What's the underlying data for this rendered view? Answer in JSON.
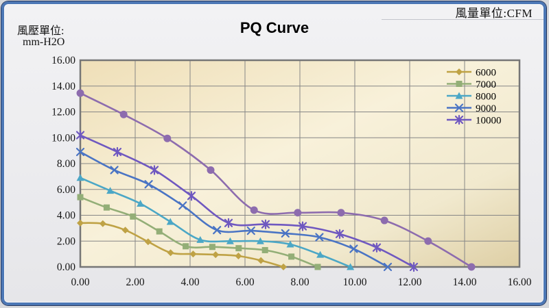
{
  "page": {
    "flow_unit": "風量單位:CFM",
    "pressure_unit_line1": "風壓單位:",
    "pressure_unit_line2": "mm-H2O",
    "title": "PQ Curve"
  },
  "colors": {
    "frame_border": "#4C77B5",
    "page_background": "#EAEAED",
    "plot_fill_edge": "#EFDFB8",
    "plot_fill_center": "#F8F1DA",
    "plot_fill_corner": "#DECFA5",
    "gridline": "#868686",
    "plot_border": "#767676",
    "text": "#141414"
  },
  "chart_data": {
    "type": "line",
    "title": "PQ Curve",
    "x_axis": {
      "label": "風量單位:CFM",
      "min": 0,
      "max": 16,
      "step": 2,
      "tick_labels": [
        "0.00",
        "2.00",
        "4.00",
        "6.00",
        "8.00",
        "10.00",
        "12.00",
        "14.00",
        "16.00"
      ]
    },
    "y_axis": {
      "label": "風壓單位: mm-H2O",
      "min": 0,
      "max": 16,
      "step": 2,
      "tick_labels": [
        "16.00",
        "14.00",
        "12.00",
        "10.00",
        "8.00",
        "6.00",
        "4.00",
        "2.00",
        "0.00"
      ]
    },
    "grid": true,
    "legend": {
      "position": "top-right-inside",
      "entries": [
        "6000",
        "7000",
        "8000",
        "9000",
        "10000"
      ]
    },
    "series": [
      {
        "name": "6000",
        "marker": "diamond",
        "color": "#BFA245",
        "in_legend": true,
        "points": [
          [
            0,
            3.4
          ],
          [
            0.82,
            3.35
          ],
          [
            1.64,
            2.85
          ],
          [
            2.47,
            1.95
          ],
          [
            3.29,
            1.1
          ],
          [
            4.11,
            1.0
          ],
          [
            4.93,
            0.95
          ],
          [
            5.76,
            0.85
          ],
          [
            6.58,
            0.5
          ],
          [
            7.4,
            0
          ]
        ]
      },
      {
        "name": "7000",
        "marker": "square",
        "color": "#93AE77",
        "in_legend": true,
        "points": [
          [
            0,
            5.4
          ],
          [
            0.96,
            4.6
          ],
          [
            1.92,
            3.9
          ],
          [
            2.88,
            2.75
          ],
          [
            3.84,
            1.6
          ],
          [
            4.81,
            1.55
          ],
          [
            5.77,
            1.45
          ],
          [
            6.73,
            1.3
          ],
          [
            7.69,
            0.8
          ],
          [
            8.65,
            0
          ]
        ]
      },
      {
        "name": "8000",
        "marker": "triangle",
        "color": "#4BA7C6",
        "in_legend": true,
        "points": [
          [
            0,
            6.9
          ],
          [
            1.09,
            5.9
          ],
          [
            2.19,
            4.9
          ],
          [
            3.28,
            3.5
          ],
          [
            4.37,
            2.1
          ],
          [
            5.46,
            2.0
          ],
          [
            6.56,
            2.0
          ],
          [
            7.65,
            1.75
          ],
          [
            8.74,
            0.95
          ],
          [
            9.84,
            0
          ]
        ]
      },
      {
        "name": "9000",
        "marker": "x",
        "color": "#4A74C4",
        "in_legend": true,
        "points": [
          [
            0,
            8.9
          ],
          [
            1.24,
            7.5
          ],
          [
            2.49,
            6.4
          ],
          [
            3.73,
            4.75
          ],
          [
            4.98,
            2.85
          ],
          [
            6.22,
            2.8
          ],
          [
            7.47,
            2.6
          ],
          [
            8.71,
            2.3
          ],
          [
            9.96,
            1.4
          ],
          [
            11.2,
            0
          ]
        ]
      },
      {
        "name": "10000",
        "marker": "star",
        "color": "#6F58C0",
        "in_legend": true,
        "points": [
          [
            0,
            10.2
          ],
          [
            1.35,
            8.9
          ],
          [
            2.7,
            7.5
          ],
          [
            4.05,
            5.5
          ],
          [
            5.4,
            3.4
          ],
          [
            6.75,
            3.3
          ],
          [
            8.1,
            3.15
          ],
          [
            9.45,
            2.55
          ],
          [
            10.8,
            1.5
          ],
          [
            12.15,
            0
          ]
        ]
      },
      {
        "name": "",
        "marker": "circle",
        "color": "#8D6CAE",
        "in_legend": false,
        "points": [
          [
            0,
            13.45
          ],
          [
            1.58,
            11.8
          ],
          [
            3.17,
            9.95
          ],
          [
            4.75,
            7.5
          ],
          [
            6.33,
            4.4
          ],
          [
            7.92,
            4.2
          ],
          [
            9.5,
            4.2
          ],
          [
            11.08,
            3.6
          ],
          [
            12.67,
            2.0
          ],
          [
            14.25,
            0
          ]
        ]
      }
    ]
  }
}
